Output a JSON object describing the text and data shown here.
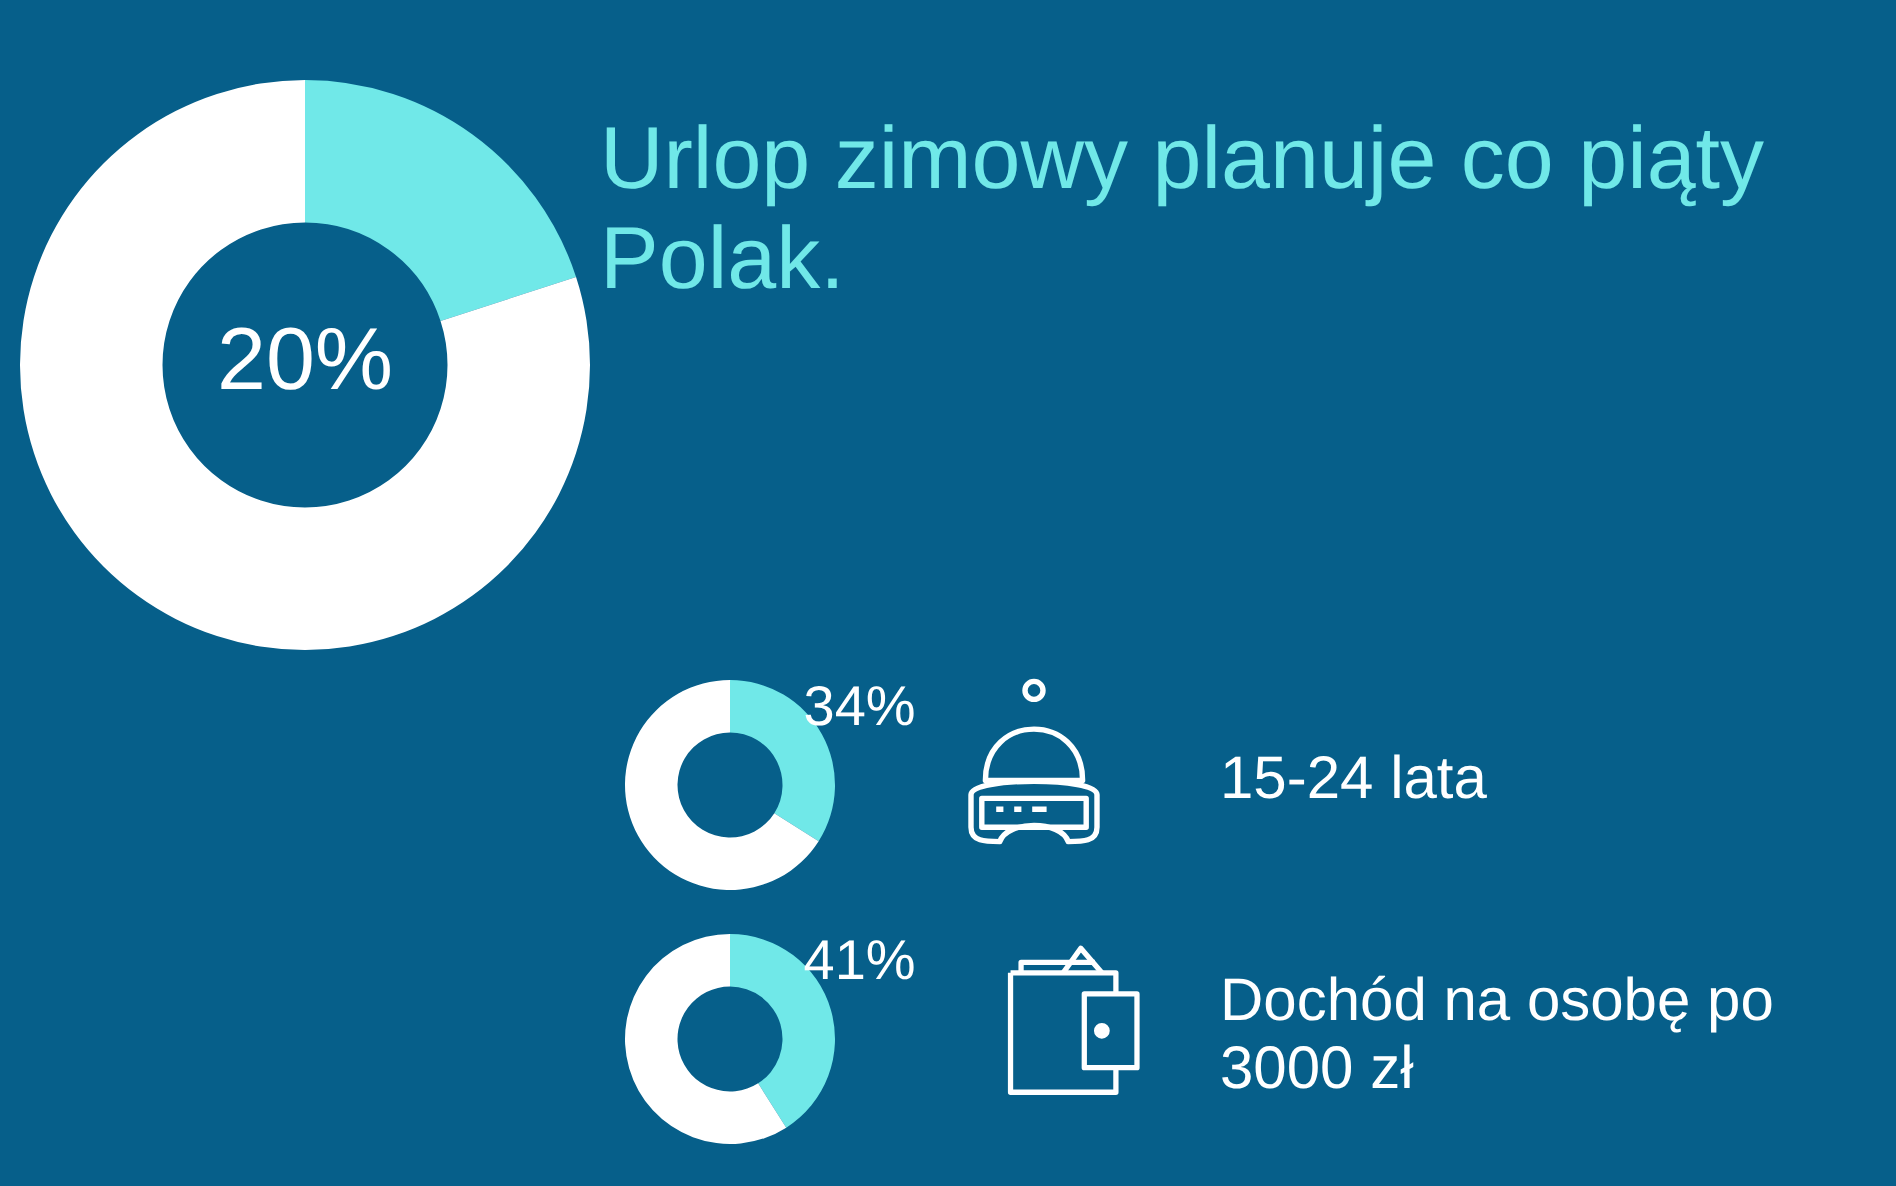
{
  "chart_data": [
    {
      "type": "donut",
      "title": "Urlop zimowy planuje co piąty Polak.",
      "categories": [
        null,
        null
      ],
      "values": [
        20,
        80
      ],
      "colors": [
        "#70e8e8",
        "#ffffff"
      ],
      "value_labels": [
        "20%",
        null
      ]
    },
    {
      "type": "donut",
      "title": "15-24 lata",
      "categories": [
        null,
        null
      ],
      "values": [
        34,
        66
      ],
      "colors": [
        "#70e8e8",
        "#ffffff"
      ],
      "value_labels": [
        "34%",
        null
      ]
    },
    {
      "type": "donut",
      "title": "Dochód na osobę po 3000 zł",
      "categories": [
        null,
        null
      ],
      "values": [
        41,
        59
      ],
      "colors": [
        "#70e8e8",
        "#ffffff"
      ],
      "value_labels": [
        "41%",
        null
      ]
    }
  ]
}
